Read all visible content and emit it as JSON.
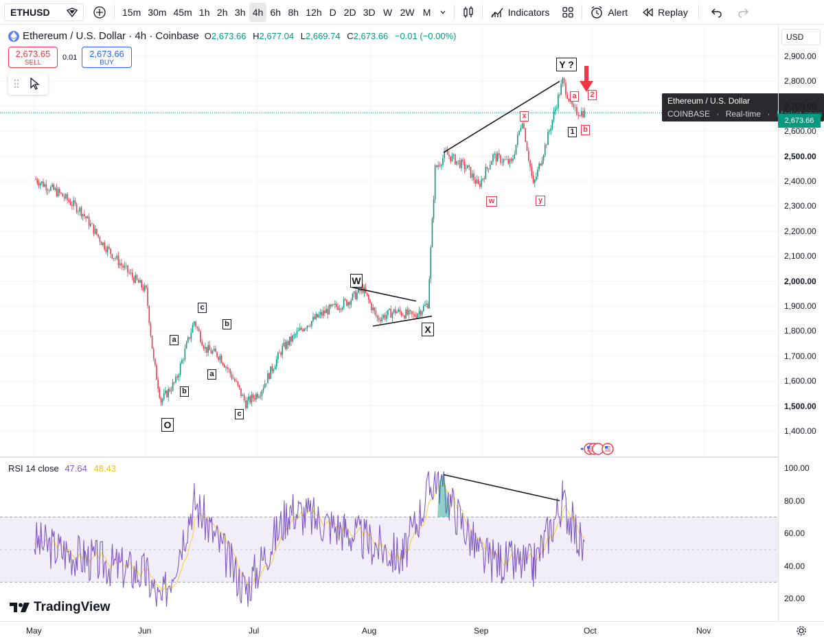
{
  "toolbar": {
    "symbol": "ETHUSD",
    "intervals": [
      "15m",
      "30m",
      "45m",
      "1h",
      "2h",
      "3h",
      "4h",
      "6h",
      "8h",
      "12h",
      "D",
      "2D",
      "3D",
      "W",
      "2W",
      "M"
    ],
    "active_interval": "4h",
    "indicators_label": "Indicators",
    "alert_label": "Alert",
    "replay_label": "Replay"
  },
  "legend": {
    "title": "Ethereum / U.S. Dollar · 4h · Coinbase",
    "o_key": "O",
    "o_val": "2,673.66",
    "h_key": "H",
    "h_val": "2,677.04",
    "l_key": "L",
    "l_val": "2,669.74",
    "c_key": "C",
    "c_val": "2,673.66",
    "change": "−0.01 (−0.00%)"
  },
  "trade": {
    "sell_price": "2,673.65",
    "sell_label": "SELL",
    "spread": "0.01",
    "buy_price": "2,673.66",
    "buy_label": "BUY"
  },
  "tooltip": {
    "title": "Ethereum / U.S. Dollar",
    "exchange": "COINBASE",
    "feed": "Real-time",
    "status": "Market open"
  },
  "price_axis": {
    "currency": "USD",
    "labels": [
      "2,900.00",
      "2,800.00",
      "2,700.00",
      "2,600.00",
      "2,500.00",
      "2,400.00",
      "2,300.00",
      "2,200.00",
      "2,100.00",
      "2,000.00",
      "1,900.00",
      "1,800.00",
      "1,700.00",
      "1,600.00",
      "1,500.00",
      "1,400.00"
    ],
    "current_tag": "2,673.66",
    "rsi_labels": [
      "100.00",
      "80.00",
      "60.00",
      "40.00",
      "20.00"
    ]
  },
  "rsi": {
    "label": "RSI 14 close",
    "value": "47.64",
    "ma_value": "48.43"
  },
  "time_axis": [
    "May",
    "Jun",
    "Jul",
    "Aug",
    "Sep",
    "Oct",
    "Nov"
  ],
  "brand": "TradingView",
  "waves": {
    "O": "O",
    "a1": "a",
    "b1": "b",
    "c1": "c",
    "a2": "a",
    "b2": "b",
    "c2": "c",
    "W": "W",
    "X": "X",
    "w": "w",
    "x": "x",
    "y": "y",
    "Y": "Y ?",
    "one": "1",
    "a3": "a",
    "b3": "b",
    "two": "2"
  },
  "chart_data": {
    "type": "line",
    "title": "Ethereum / U.S. Dollar · 4h · Coinbase",
    "x": [
      "May",
      "Jun",
      "Jul",
      "Aug",
      "Sep",
      "Oct"
    ],
    "series": [
      {
        "name": "ETHUSD",
        "points": [
          [
            "May 1",
            2410
          ],
          [
            "May 8",
            2350
          ],
          [
            "May 14",
            2280
          ],
          [
            "May 20",
            2150
          ],
          [
            "May 26",
            2050
          ],
          [
            "Jun 1",
            1960
          ],
          [
            "Jun 3",
            1680
          ],
          [
            "Jun 5",
            1520
          ],
          [
            "Jun 9",
            1600
          ],
          [
            "Jun 14",
            1840
          ],
          [
            "Jun 17",
            1730
          ],
          [
            "Jun 21",
            1700
          ],
          [
            "Jun 25",
            1600
          ],
          [
            "Jun 28",
            1510
          ],
          [
            "Jul 2",
            1560
          ],
          [
            "Jul 8",
            1730
          ],
          [
            "Jul 14",
            1820
          ],
          [
            "Jul 20",
            1880
          ],
          [
            "Jul 26",
            1920
          ],
          [
            "Jul 30",
            1970
          ],
          [
            "Aug 3",
            1850
          ],
          [
            "Aug 8",
            1880
          ],
          [
            "Aug 13",
            1860
          ],
          [
            "Aug 17",
            1910
          ],
          [
            "Aug 19",
            2450
          ],
          [
            "Aug 22",
            2510
          ],
          [
            "Aug 28",
            2450
          ],
          [
            "Aug 31",
            2380
          ],
          [
            "Sep 4",
            2500
          ],
          [
            "Sep 9",
            2470
          ],
          [
            "Sep 12",
            2650
          ],
          [
            "Sep 15",
            2380
          ],
          [
            "Sep 19",
            2580
          ],
          [
            "Sep 23",
            2800
          ],
          [
            "Sep 26",
            2680
          ],
          [
            "Sep 29",
            2674
          ]
        ]
      },
      {
        "name": "RSI",
        "points": [
          [
            "May 1",
            55
          ],
          [
            "May 15",
            45
          ],
          [
            "Jun 1",
            35
          ],
          [
            "Jun 5",
            16
          ],
          [
            "Jun 14",
            80
          ],
          [
            "Jun 28",
            25
          ],
          [
            "Jul 10",
            75
          ],
          [
            "Jul 25",
            62
          ],
          [
            "Aug 10",
            45
          ],
          [
            "Aug 19",
            96
          ],
          [
            "Sep 1",
            45
          ],
          [
            "Sep 15",
            40
          ],
          [
            "Sep 23",
            80
          ],
          [
            "Sep 29",
            48
          ]
        ]
      }
    ],
    "ylim": [
      1350,
      2950
    ],
    "rsi_ylim": [
      10,
      105
    ],
    "rsi_bands": [
      30,
      50,
      70
    ]
  }
}
